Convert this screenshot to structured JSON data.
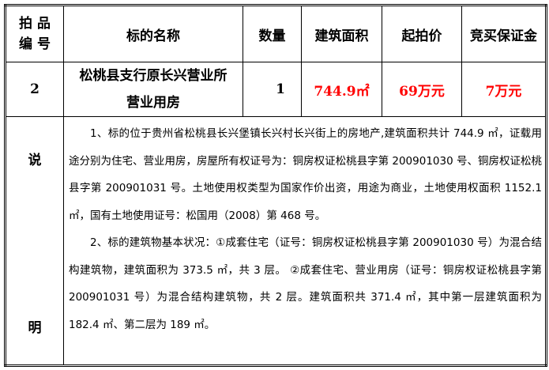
{
  "header": {
    "lot_no_line1": "拍 品",
    "lot_no_line2": "编 号",
    "name": "标的名称",
    "quantity": "数量",
    "area": "建筑面积",
    "start_price": "起拍价",
    "deposit": "竞买保证金"
  },
  "row": {
    "lot_no": "2",
    "name_line1": "松桃县支行原长兴营业所",
    "name_line2": "营业用房",
    "quantity": "1",
    "area": "744.9㎡",
    "start_price": "69万元",
    "deposit": "7万元"
  },
  "description": {
    "label_top": "说",
    "label_bottom": "明",
    "paragraphs": [
      "1、标的位于贵州省松桃县长兴堡镇长兴村长兴街上的房地产,建筑面积共计 744.9 ㎡，证载用途分别为住宅、营业用房，房屋所有权证号为：铜房权证松桃县字第 200901030 号、铜房权证松桃县字第 200901031 号。土地使用权类型为国家作价出资，用途为商业，土地使用权面积 1152.1 ㎡，国有土地使用证号：松国用（2008）第 468 号。",
      "2、标的建筑物基本状况：①成套住宅（证号：铜房权证松桃县字第 200901030 号）为混合结构建筑物，建筑面积为 373.5 ㎡，共 3 层。 ②成套住宅、营业用房（证号：铜房权证松桃县字第 200901031 号）为混合结构建筑物，共 2 层。建筑面积共 371.4 ㎡，其中第一层建筑面积为 182.4 ㎡、第二层为 189 ㎡。"
    ]
  },
  "colors": {
    "highlight": "#ff0000",
    "border": "#000000"
  }
}
